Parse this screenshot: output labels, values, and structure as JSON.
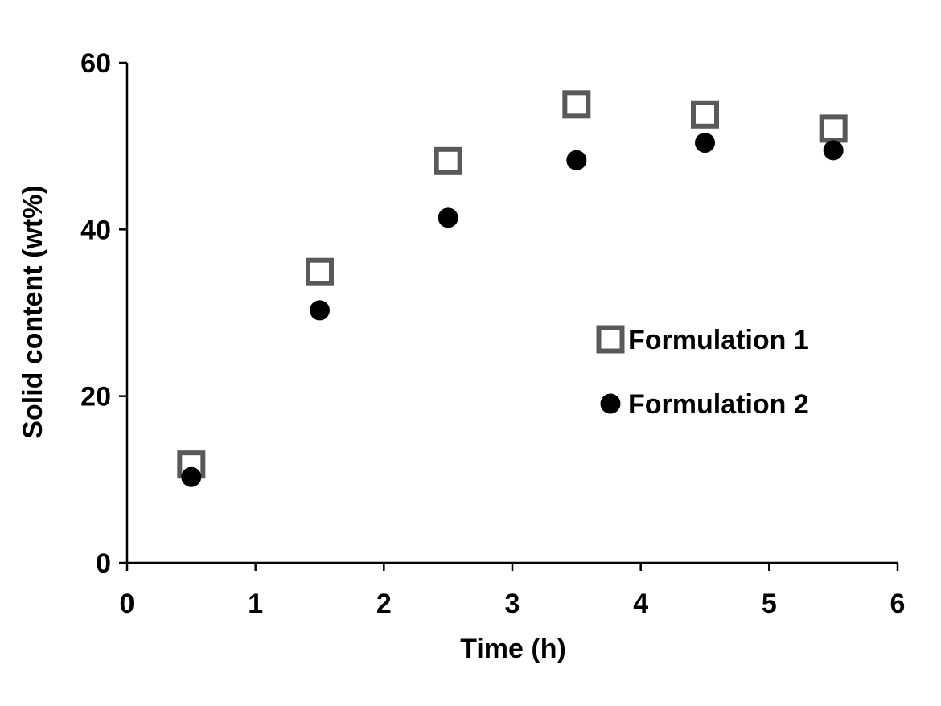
{
  "chart_data": {
    "type": "scatter",
    "title": "",
    "xlabel": "Time (h)",
    "ylabel": "Solid content (wt%)",
    "xlim": [
      0,
      6
    ],
    "ylim": [
      0,
      60
    ],
    "xticks": [
      "0",
      "1",
      "2",
      "3",
      "4",
      "5",
      "6"
    ],
    "yticks": [
      "0",
      "20",
      "40",
      "60"
    ],
    "grid": false,
    "legend_position": "right",
    "series": [
      {
        "name": "Formulation 1",
        "marker": "open-square",
        "color": "#595959",
        "x": [
          0.5,
          1.5,
          2.5,
          3.5,
          4.5,
          5.5
        ],
        "y": [
          11.8,
          34.9,
          48.2,
          55.0,
          53.8,
          52.1
        ]
      },
      {
        "name": "Formulation 2",
        "marker": "filled-circle",
        "color": "#000000",
        "x": [
          0.5,
          1.5,
          2.5,
          3.5,
          4.5,
          5.5
        ],
        "y": [
          10.3,
          30.3,
          41.4,
          48.3,
          50.4,
          49.5
        ]
      }
    ]
  }
}
